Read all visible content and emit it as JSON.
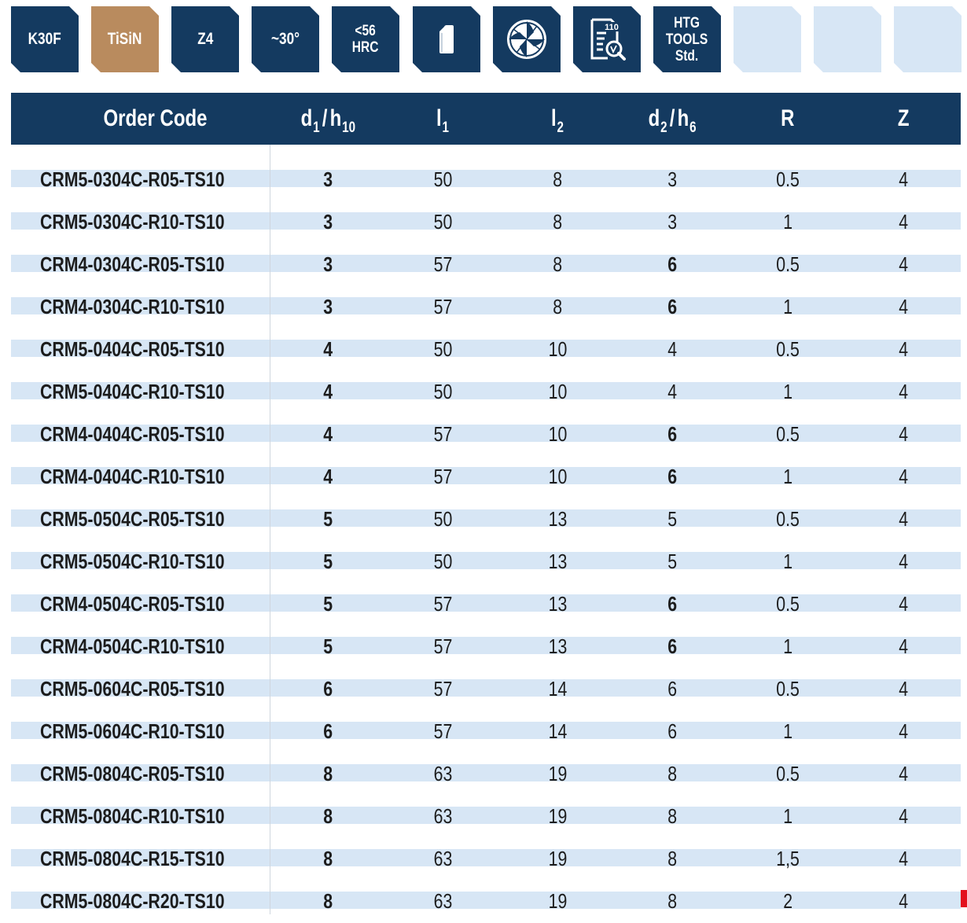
{
  "colors": {
    "navy": "#143a60",
    "tan": "#b98b5e",
    "pale_blue": "#d7e6f5",
    "row_stripe": "#d7e6f5",
    "accent_red": "#e3101d"
  },
  "badges": [
    {
      "lines": [
        "K30F"
      ],
      "color": "navy"
    },
    {
      "lines": [
        "TiSiN"
      ],
      "color": "tan"
    },
    {
      "lines": [
        "Z4"
      ],
      "color": "navy"
    },
    {
      "lines": [
        "~30°"
      ],
      "color": "navy"
    },
    {
      "lines": [
        "<56",
        "HRC"
      ],
      "color": "navy"
    },
    {
      "icon": "shank-icon",
      "color": "navy"
    },
    {
      "icon": "end-mill-cross-section-icon",
      "color": "navy"
    },
    {
      "icon": "cutting-data-catalog-icon",
      "icon_text": "110",
      "color": "navy"
    },
    {
      "lines": [
        "HTG",
        "TOOLS",
        "Std."
      ],
      "color": "navy"
    },
    {
      "lines": [],
      "color": "pale_blue"
    },
    {
      "lines": [],
      "color": "pale_blue"
    },
    {
      "lines": [],
      "color": "pale_blue"
    }
  ],
  "table": {
    "columns": [
      {
        "key": "code",
        "main": "Order Code"
      },
      {
        "key": "d1",
        "main": "d",
        "sub": "1",
        "slash": "/",
        "main2": "h",
        "sub2": "10"
      },
      {
        "key": "l1",
        "main": "l",
        "sub": "1"
      },
      {
        "key": "l2",
        "main": "l",
        "sub": "2"
      },
      {
        "key": "d2",
        "main": "d",
        "sub": "2",
        "slash": "/",
        "main2": "h",
        "sub2": "6"
      },
      {
        "key": "R",
        "main": "R"
      },
      {
        "key": "Z",
        "main": "Z"
      }
    ],
    "rows": [
      {
        "code": "CRM5-0304C-R05-TS10",
        "d1": "3",
        "l1": "50",
        "l2": "8",
        "d2": "3",
        "R": "0.5",
        "Z": "4"
      },
      {
        "code": "CRM5-0304C-R10-TS10",
        "d1": "3",
        "l1": "50",
        "l2": "8",
        "d2": "3",
        "R": "1",
        "Z": "4"
      },
      {
        "code": "CRM4-0304C-R05-TS10",
        "d1": "3",
        "l1": "57",
        "l2": "8",
        "d2": "6",
        "R": "0.5",
        "Z": "4"
      },
      {
        "code": "CRM4-0304C-R10-TS10",
        "d1": "3",
        "l1": "57",
        "l2": "8",
        "d2": "6",
        "R": "1",
        "Z": "4"
      },
      {
        "code": "CRM5-0404C-R05-TS10",
        "d1": "4",
        "l1": "50",
        "l2": "10",
        "d2": "4",
        "R": "0.5",
        "Z": "4"
      },
      {
        "code": "CRM5-0404C-R10-TS10",
        "d1": "4",
        "l1": "50",
        "l2": "10",
        "d2": "4",
        "R": "1",
        "Z": "4"
      },
      {
        "code": "CRM4-0404C-R05-TS10",
        "d1": "4",
        "l1": "57",
        "l2": "10",
        "d2": "6",
        "R": "0.5",
        "Z": "4"
      },
      {
        "code": "CRM4-0404C-R10-TS10",
        "d1": "4",
        "l1": "57",
        "l2": "10",
        "d2": "6",
        "R": "1",
        "Z": "4"
      },
      {
        "code": "CRM5-0504C-R05-TS10",
        "d1": "5",
        "l1": "50",
        "l2": "13",
        "d2": "5",
        "R": "0.5",
        "Z": "4"
      },
      {
        "code": "CRM5-0504C-R10-TS10",
        "d1": "5",
        "l1": "50",
        "l2": "13",
        "d2": "5",
        "R": "1",
        "Z": "4"
      },
      {
        "code": "CRM4-0504C-R05-TS10",
        "d1": "5",
        "l1": "57",
        "l2": "13",
        "d2": "6",
        "R": "0.5",
        "Z": "4"
      },
      {
        "code": "CRM4-0504C-R10-TS10",
        "d1": "5",
        "l1": "57",
        "l2": "13",
        "d2": "6",
        "R": "1",
        "Z": "4"
      },
      {
        "code": "CRM5-0604C-R05-TS10",
        "d1": "6",
        "l1": "57",
        "l2": "14",
        "d2": "6",
        "R": "0.5",
        "Z": "4"
      },
      {
        "code": "CRM5-0604C-R10-TS10",
        "d1": "6",
        "l1": "57",
        "l2": "14",
        "d2": "6",
        "R": "1",
        "Z": "4"
      },
      {
        "code": "CRM5-0804C-R05-TS10",
        "d1": "8",
        "l1": "63",
        "l2": "19",
        "d2": "8",
        "R": "0.5",
        "Z": "4"
      },
      {
        "code": "CRM5-0804C-R10-TS10",
        "d1": "8",
        "l1": "63",
        "l2": "19",
        "d2": "8",
        "R": "1",
        "Z": "4"
      },
      {
        "code": "CRM5-0804C-R15-TS10",
        "d1": "8",
        "l1": "63",
        "l2": "19",
        "d2": "8",
        "R": "1,5",
        "Z": "4"
      },
      {
        "code": "CRM5-0804C-R20-TS10",
        "d1": "8",
        "l1": "63",
        "l2": "19",
        "d2": "8",
        "R": "2",
        "Z": "4"
      }
    ]
  }
}
